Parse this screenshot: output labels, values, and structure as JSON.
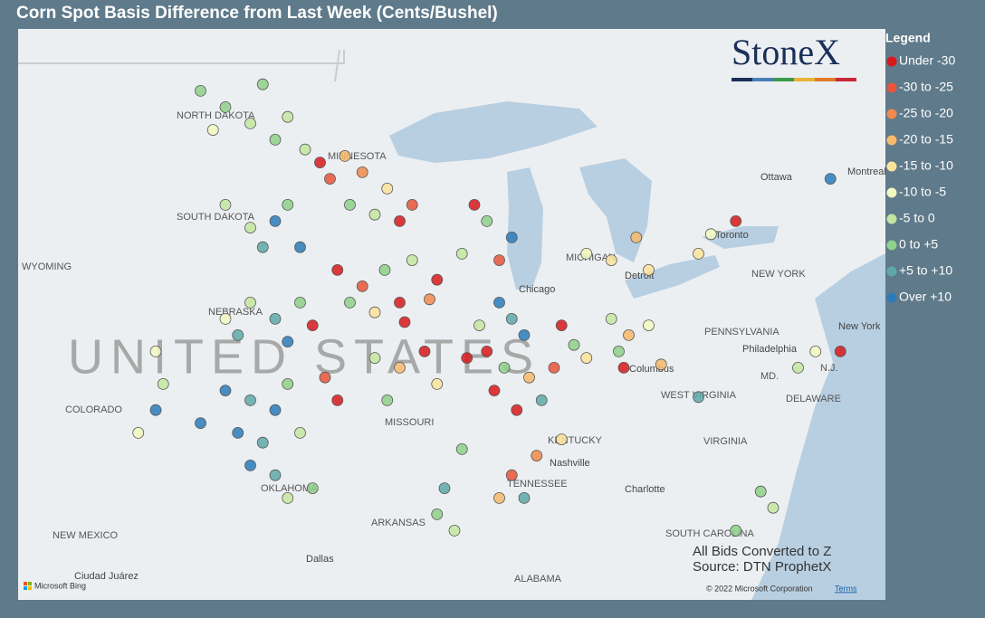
{
  "title": "Corn Spot Basis Difference from Last Week (Cents/Bushel)",
  "legend": {
    "title": "Legend",
    "items": [
      {
        "label": "Under -30",
        "color": "#d7191c"
      },
      {
        "label": "-30 to -25",
        "color": "#e8553a"
      },
      {
        "label": "-25 to -20",
        "color": "#f08a4b"
      },
      {
        "label": "-20 to -15",
        "color": "#f7b96b"
      },
      {
        "label": "-15 to -10",
        "color": "#fbe39a"
      },
      {
        "label": "-10 to -5",
        "color": "#f3f8bf"
      },
      {
        "label": "-5 to 0",
        "color": "#c4e6a0"
      },
      {
        "label": "0 to +5",
        "color": "#8fd08a"
      },
      {
        "label": "+5 to +10",
        "color": "#5fa8a8"
      },
      {
        "label": "Over +10",
        "color": "#2b7bba"
      }
    ]
  },
  "logo": "StoneX",
  "country_label": "UNITED STATES",
  "map_labels": [
    "NORTH DAKOTA",
    "MINNESOTA",
    "SOUTH DAKOTA",
    "WYOMING",
    "NEBRASKA",
    "COLORADO",
    "MISSOURI",
    "OKLAHOMA",
    "ARKANSAS",
    "NEW MEXICO",
    "TENNESSEE",
    "KENTUCKY",
    "ALABAMA",
    "VIRGINIA",
    "WEST VIRGINIA",
    "PENNSYLVANIA",
    "NEW YORK",
    "MD.",
    "DELAWARE",
    "N.J.",
    "SOUTH CAROLINA",
    "MICHIGAN",
    "Chicago",
    "Columbus",
    "Nashville",
    "Dallas",
    "Charlotte",
    "Philadelphia",
    "New York",
    "Ottawa",
    "Montreal",
    "Toronto",
    "Detroit",
    "Ciudad Juárez"
  ],
  "notes": [
    "All Bids Converted to Z",
    "Source: DTN ProphetX"
  ],
  "attribution": {
    "provider": "Microsoft Bing",
    "copyright": "© 2022 Microsoft Corporation",
    "terms": "Terms"
  },
  "points": [
    [
      -100,
      47.5,
      7
    ],
    [
      -99,
      47,
      6
    ],
    [
      -98,
      46.5,
      7
    ],
    [
      -97.5,
      47.2,
      6
    ],
    [
      -101,
      48,
      7
    ],
    [
      -100.5,
      46.8,
      5
    ],
    [
      -98.5,
      48.2,
      7
    ],
    [
      -96.8,
      46.2,
      6
    ],
    [
      -96.2,
      45.8,
      0
    ],
    [
      -95.8,
      45.3,
      1
    ],
    [
      -95.2,
      46,
      3
    ],
    [
      -94.5,
      45.5,
      2
    ],
    [
      -93.5,
      45,
      4
    ],
    [
      -95,
      44.5,
      7
    ],
    [
      -94,
      44.2,
      6
    ],
    [
      -92.5,
      44.5,
      1
    ],
    [
      -93,
      44,
      0
    ],
    [
      -98,
      44,
      9
    ],
    [
      -97.5,
      44.5,
      7
    ],
    [
      -99,
      43.8,
      6
    ],
    [
      -97,
      43.2,
      9
    ],
    [
      -98.5,
      43.2,
      8
    ],
    [
      -100,
      44.5,
      6
    ],
    [
      -95.5,
      42.5,
      0
    ],
    [
      -94.5,
      42,
      1
    ],
    [
      -93.6,
      42.5,
      7
    ],
    [
      -92.5,
      42.8,
      6
    ],
    [
      -91.5,
      42.2,
      0
    ],
    [
      -93,
      41.5,
      0
    ],
    [
      -94,
      41.2,
      4
    ],
    [
      -95,
      41.5,
      7
    ],
    [
      -91.8,
      41.6,
      2
    ],
    [
      -92.8,
      40.9,
      0
    ],
    [
      -90,
      44.5,
      0
    ],
    [
      -89.5,
      44,
      7
    ],
    [
      -88.5,
      43.5,
      9
    ],
    [
      -90.5,
      43,
      6
    ],
    [
      -89,
      42.8,
      1
    ],
    [
      -85.5,
      43,
      5
    ],
    [
      -84.5,
      42.8,
      4
    ],
    [
      -83.5,
      43.5,
      3
    ],
    [
      -83,
      42.5,
      4
    ],
    [
      -81,
      43,
      4
    ],
    [
      -80.5,
      43.6,
      5
    ],
    [
      -79.5,
      44,
      0
    ],
    [
      -75.7,
      45.3,
      9
    ],
    [
      -89,
      41.5,
      9
    ],
    [
      -88.5,
      41,
      8
    ],
    [
      -89.8,
      40.8,
      6
    ],
    [
      -88,
      40.5,
      9
    ],
    [
      -89.5,
      40,
      0
    ],
    [
      -90.3,
      39.8,
      0
    ],
    [
      -88.8,
      39.5,
      7
    ],
    [
      -87.8,
      39.2,
      3
    ],
    [
      -89.2,
      38.8,
      0
    ],
    [
      -88.3,
      38.2,
      0
    ],
    [
      -86.5,
      40.8,
      0
    ],
    [
      -86,
      40.2,
      7
    ],
    [
      -85.5,
      39.8,
      4
    ],
    [
      -86.8,
      39.5,
      1
    ],
    [
      -87.3,
      38.5,
      8
    ],
    [
      -84.5,
      41,
      6
    ],
    [
      -83.8,
      40.5,
      3
    ],
    [
      -83,
      40.8,
      5
    ],
    [
      -84,
      39.5,
      0
    ],
    [
      -82.5,
      39.6,
      3
    ],
    [
      -84.2,
      40,
      7
    ],
    [
      -99,
      41.5,
      6
    ],
    [
      -98,
      41,
      8
    ],
    [
      -97,
      41.5,
      7
    ],
    [
      -96.5,
      40.8,
      0
    ],
    [
      -100,
      41,
      5
    ],
    [
      -97.5,
      40.3,
      9
    ],
    [
      -99.5,
      40.5,
      8
    ],
    [
      -100,
      38.8,
      9
    ],
    [
      -99,
      38.5,
      8
    ],
    [
      -98,
      38.2,
      9
    ],
    [
      -97.5,
      39,
      7
    ],
    [
      -96,
      39.2,
      1
    ],
    [
      -95.5,
      38.5,
      0
    ],
    [
      -101,
      37.8,
      9
    ],
    [
      -99.5,
      37.5,
      9
    ],
    [
      -98.5,
      37.2,
      8
    ],
    [
      -97,
      37.5,
      6
    ],
    [
      -99,
      36.5,
      9
    ],
    [
      -98,
      36.2,
      8
    ],
    [
      -97.5,
      35.5,
      6
    ],
    [
      -96.5,
      35.8,
      7
    ],
    [
      -94,
      39.8,
      6
    ],
    [
      -93,
      39.5,
      3
    ],
    [
      -92,
      40,
      0
    ],
    [
      -93.5,
      38.5,
      7
    ],
    [
      -91.5,
      39,
      4
    ],
    [
      -90.5,
      37,
      7
    ],
    [
      -87.5,
      36.8,
      2
    ],
    [
      -88.5,
      36.2,
      1
    ],
    [
      -86.5,
      37.3,
      4
    ],
    [
      -89,
      35.5,
      3
    ],
    [
      -88,
      35.5,
      8
    ],
    [
      -102.8,
      40,
      5
    ],
    [
      -102.5,
      39,
      6
    ],
    [
      -102.8,
      38.2,
      9
    ],
    [
      -103.5,
      37.5,
      5
    ],
    [
      -76.3,
      40,
      5
    ],
    [
      -75.3,
      40,
      0
    ],
    [
      -77,
      39.5,
      6
    ],
    [
      -78.5,
      35.7,
      7
    ],
    [
      -78,
      35.2,
      6
    ],
    [
      -79.5,
      34.5,
      7
    ],
    [
      -81,
      38.6,
      8
    ],
    [
      -91.5,
      35,
      7
    ],
    [
      -90.8,
      34.5,
      6
    ],
    [
      -91.2,
      35.8,
      8
    ]
  ]
}
